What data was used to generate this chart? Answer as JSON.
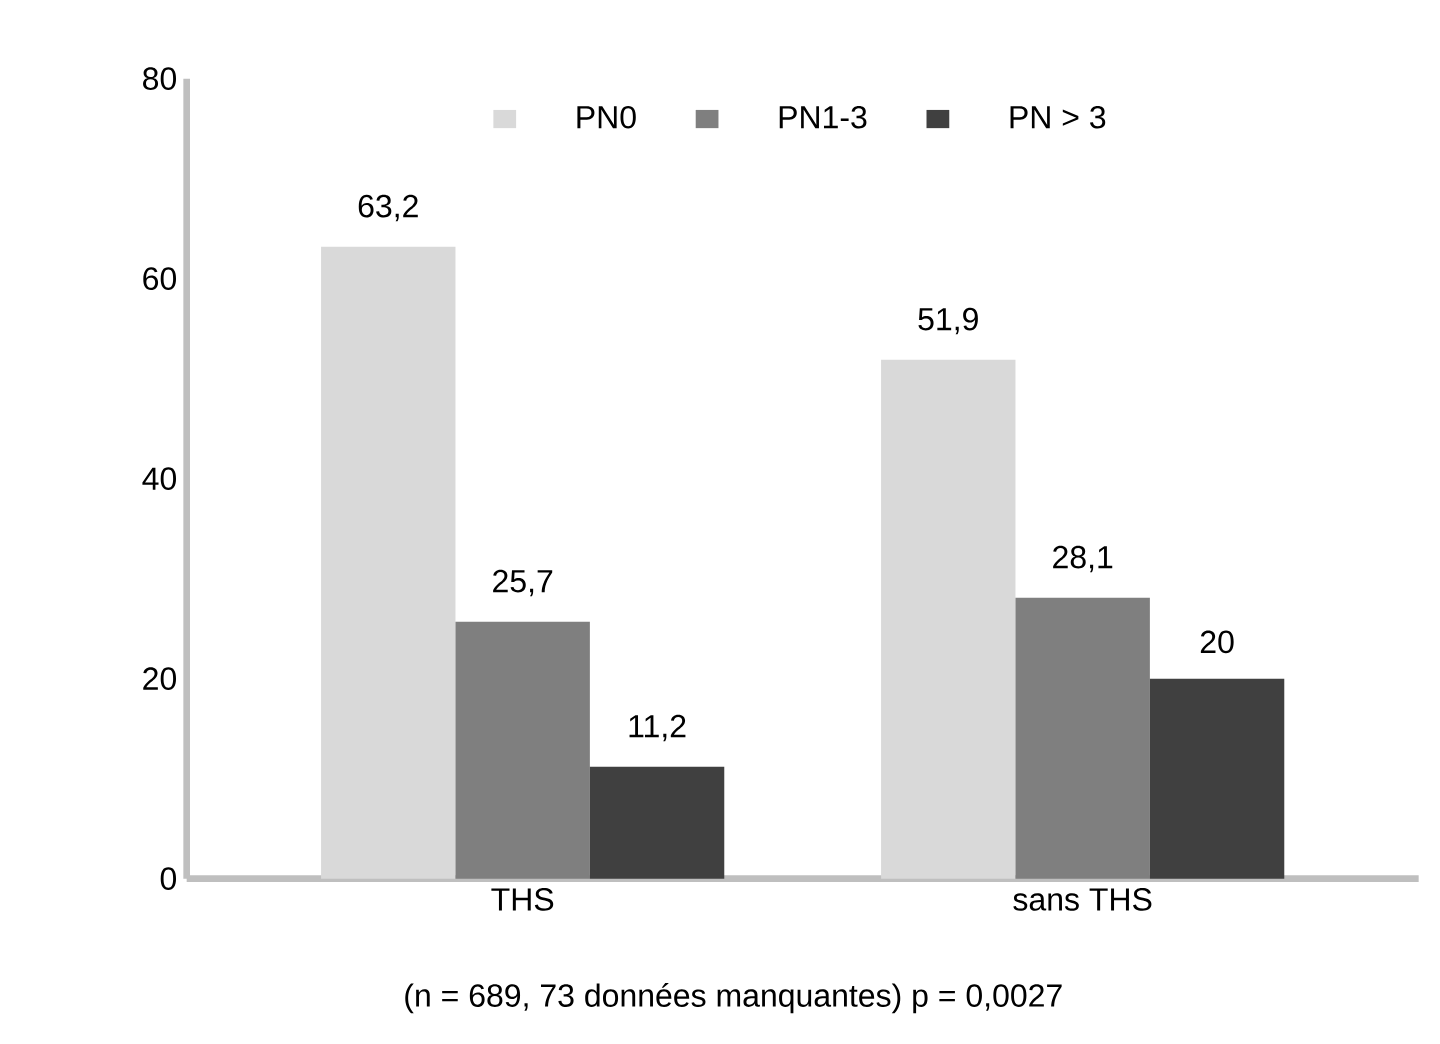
{
  "chart_data": {
    "type": "bar",
    "categories": [
      "THS",
      "sans THS"
    ],
    "series": [
      {
        "name": "PN0",
        "color": "#d9d9d9",
        "values": [
          63.2,
          51.9
        ],
        "value_labels": [
          "63,2",
          "51,9"
        ]
      },
      {
        "name": "PN1-3",
        "color": "#7f7f7f",
        "values": [
          25.7,
          28.1
        ],
        "value_labels": [
          "25,7",
          "28,1"
        ]
      },
      {
        "name": "PN > 3",
        "color": "#404040",
        "values": [
          11.2,
          20
        ],
        "value_labels": [
          "11,2",
          "20"
        ]
      }
    ],
    "ylim": [
      0,
      80
    ],
    "yticks": [
      0,
      20,
      40,
      60,
      80
    ],
    "legend": "top",
    "annotations": [
      "(n = 689, 73 données manquantes) p = 0,0027"
    ]
  }
}
